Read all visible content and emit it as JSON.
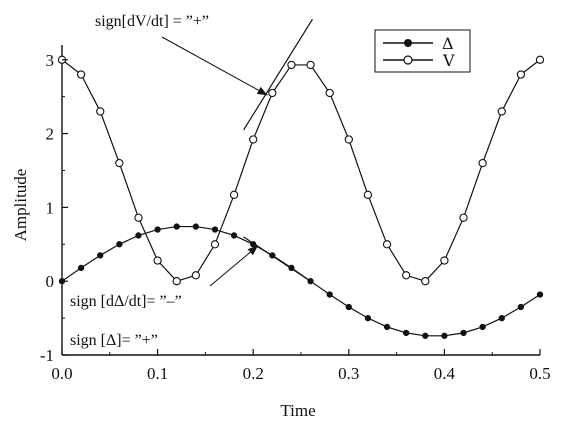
{
  "chart_data": {
    "type": "line",
    "title": "",
    "xlabel": "Time",
    "ylabel": "Amplitude",
    "xlim": [
      0.0,
      0.5
    ],
    "ylim": [
      -1,
      3.2
    ],
    "xticks": [
      "0.0",
      "0.1",
      "0.2",
      "0.3",
      "0.4",
      "0.5"
    ],
    "yticks": [
      "-1",
      "0",
      "1",
      "2",
      "3"
    ],
    "grid": false,
    "legend_position": "top-right",
    "series": [
      {
        "name": "Δ",
        "marker": "filled-circle",
        "line_style": "solid",
        "x": [
          0.0,
          0.02,
          0.04,
          0.06,
          0.08,
          0.1,
          0.12,
          0.14,
          0.16,
          0.18,
          0.2,
          0.22,
          0.24,
          0.26,
          0.28,
          0.3,
          0.32,
          0.34,
          0.36,
          0.38,
          0.4,
          0.42,
          0.44,
          0.46,
          0.48,
          0.5
        ],
        "values": [
          0.0,
          0.18,
          0.35,
          0.5,
          0.62,
          0.7,
          0.74,
          0.74,
          0.7,
          0.62,
          0.5,
          0.35,
          0.18,
          0.0,
          -0.18,
          -0.35,
          -0.5,
          -0.62,
          -0.7,
          -0.74,
          -0.74,
          -0.7,
          -0.62,
          -0.5,
          -0.35,
          -0.18
        ]
      },
      {
        "name": "V",
        "marker": "open-circle",
        "line_style": "solid",
        "x": [
          0.0,
          0.02,
          0.04,
          0.06,
          0.08,
          0.1,
          0.12,
          0.14,
          0.16,
          0.18,
          0.2,
          0.22,
          0.24,
          0.26,
          0.28,
          0.3,
          0.32,
          0.34,
          0.36,
          0.38,
          0.4,
          0.42,
          0.44,
          0.46,
          0.48,
          0.5
        ],
        "values": [
          3.0,
          2.8,
          2.3,
          1.6,
          0.86,
          0.28,
          0.0,
          0.08,
          0.5,
          1.17,
          1.92,
          2.55,
          2.93,
          2.93,
          2.55,
          1.92,
          1.17,
          0.5,
          0.08,
          0.0,
          0.28,
          0.86,
          1.6,
          2.3,
          2.8,
          3.0
        ]
      }
    ],
    "annotations": [
      {
        "id": "dvdt",
        "text": "sign[dV/dt] = ”+”",
        "target": [
          0.215,
          2.52
        ]
      },
      {
        "id": "ddelta",
        "text": "sign [dΔ/dt]= ”–”",
        "target": [
          0.205,
          0.48
        ]
      },
      {
        "id": "delta",
        "text": "sign [Δ]= ”+”"
      }
    ],
    "tangent_lines": [
      {
        "series": "V",
        "from": [
          0.19,
          2.05
        ],
        "to": [
          0.262,
          3.55
        ]
      },
      {
        "series": "Δ",
        "from": [
          0.19,
          0.6
        ],
        "to": [
          0.26,
          0.0
        ]
      }
    ]
  }
}
